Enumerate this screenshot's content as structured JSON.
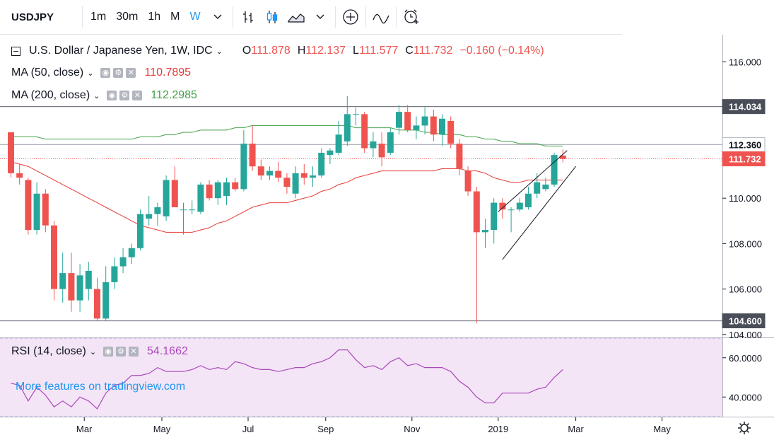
{
  "toolbar": {
    "symbol": "USDJPY",
    "timeframes": [
      "1m",
      "30m",
      "1h",
      "M",
      "W"
    ],
    "active_timeframe": "W",
    "icons": [
      "chevron-down-icon",
      "bar-chart-icon",
      "candle-chart-icon",
      "area-chart-icon",
      "chevron-down-icon",
      "add-indicator-icon",
      "line-compare-icon",
      "alert-clock-icon"
    ]
  },
  "legend": {
    "main": {
      "title": "U.S. Dollar / Japanese Yen, 1W, IDC",
      "open_label": "O",
      "open": "111.878",
      "high_label": "H",
      "high": "112.137",
      "low_label": "L",
      "low": "111.577",
      "close_label": "C",
      "close": "111.732",
      "change": "−0.160 (−0.14%)"
    },
    "ma50": {
      "label": "MA (50, close)",
      "value": "110.7895"
    },
    "ma200": {
      "label": "MA (200, close)",
      "value": "112.2985"
    },
    "rsi": {
      "label": "RSI (14, close)",
      "value": "54.1662"
    }
  },
  "watermark": "More features on tradingview.com",
  "colors": {
    "up": "#26a69a",
    "down": "#ef5350",
    "ma50": "#e53935",
    "ma200": "#43a047",
    "rsi": "#ab47bc",
    "rsi_bg": "#f3e5f5",
    "accent": "#2196f3"
  },
  "price_labels": [
    {
      "text": "114.034",
      "value": 114.034,
      "style": "dark"
    },
    {
      "text": "112.360",
      "value": 112.36,
      "style": "light"
    },
    {
      "text": "111.732",
      "value": 111.732,
      "style": "red"
    },
    {
      "text": "104.600",
      "value": 104.6,
      "style": "dark"
    }
  ],
  "chart_data": {
    "type": "candlestick",
    "price_axis": {
      "ticks": [
        104,
        106,
        108,
        110,
        112,
        114,
        116
      ],
      "tick_labels": [
        "104.000",
        "106.000",
        "108.000",
        "110.000",
        "112.000",
        "114.000",
        "116.000"
      ],
      "range": [
        103.9,
        117.2
      ]
    },
    "rsi_axis": {
      "ticks": [
        40,
        60
      ],
      "tick_labels": [
        "40.0000",
        "60.0000"
      ],
      "range": [
        30,
        70
      ],
      "band": [
        30,
        70
      ]
    },
    "time_axis": {
      "labels": [
        "Mar",
        "May",
        "Jul",
        "Sep",
        "Nov",
        "2019",
        "Mar",
        "May"
      ],
      "label_bar_index": [
        8.5,
        17.5,
        27.5,
        36.5,
        46.5,
        56.5,
        65.5,
        75.5
      ]
    },
    "horizontal_lines": [
      114.034,
      112.36,
      104.6
    ],
    "candles": [
      {
        "o": 112.9,
        "h": 112.9,
        "l": 110.9,
        "c": 111.1
      },
      {
        "o": 111.1,
        "h": 111.5,
        "l": 110.6,
        "c": 110.9
      },
      {
        "o": 110.8,
        "h": 110.9,
        "l": 108.4,
        "c": 108.6
      },
      {
        "o": 108.6,
        "h": 110.7,
        "l": 108.4,
        "c": 110.2
      },
      {
        "o": 110.2,
        "h": 110.4,
        "l": 108.5,
        "c": 108.8
      },
      {
        "o": 108.8,
        "h": 109.0,
        "l": 105.5,
        "c": 106.0
      },
      {
        "o": 106.0,
        "h": 107.6,
        "l": 105.4,
        "c": 106.7
      },
      {
        "o": 106.7,
        "h": 107.6,
        "l": 105.0,
        "c": 105.5
      },
      {
        "o": 105.5,
        "h": 107.1,
        "l": 105.0,
        "c": 106.6
      },
      {
        "o": 106.0,
        "h": 107.2,
        "l": 105.5,
        "c": 106.8
      },
      {
        "o": 106.0,
        "h": 106.5,
        "l": 104.6,
        "c": 104.7
      },
      {
        "o": 104.7,
        "h": 107.0,
        "l": 104.6,
        "c": 106.3
      },
      {
        "o": 106.3,
        "h": 107.4,
        "l": 106.0,
        "c": 107.0
      },
      {
        "o": 107.0,
        "h": 107.8,
        "l": 106.7,
        "c": 107.4
      },
      {
        "o": 107.4,
        "h": 108.0,
        "l": 107.1,
        "c": 107.8
      },
      {
        "o": 107.8,
        "h": 109.5,
        "l": 107.7,
        "c": 109.3
      },
      {
        "o": 109.1,
        "h": 110.1,
        "l": 108.8,
        "c": 109.3
      },
      {
        "o": 109.3,
        "h": 109.8,
        "l": 108.8,
        "c": 109.6
      },
      {
        "o": 109.2,
        "h": 111.0,
        "l": 109.0,
        "c": 110.8
      },
      {
        "o": 110.8,
        "h": 111.4,
        "l": 109.6,
        "c": 109.6
      },
      {
        "o": 109.5,
        "h": 109.8,
        "l": 108.4,
        "c": 109.5
      },
      {
        "o": 109.5,
        "h": 109.9,
        "l": 109.3,
        "c": 109.5
      },
      {
        "o": 109.4,
        "h": 110.7,
        "l": 109.3,
        "c": 110.6
      },
      {
        "o": 110.6,
        "h": 110.8,
        "l": 109.9,
        "c": 110.0
      },
      {
        "o": 110.0,
        "h": 110.8,
        "l": 109.7,
        "c": 110.7
      },
      {
        "o": 110.1,
        "h": 110.9,
        "l": 109.7,
        "c": 110.7
      },
      {
        "o": 110.7,
        "h": 110.9,
        "l": 110.3,
        "c": 110.4
      },
      {
        "o": 110.4,
        "h": 113.0,
        "l": 110.3,
        "c": 112.4
      },
      {
        "o": 112.4,
        "h": 113.2,
        "l": 111.2,
        "c": 111.4
      },
      {
        "o": 111.4,
        "h": 111.7,
        "l": 110.8,
        "c": 111.0
      },
      {
        "o": 111.0,
        "h": 111.4,
        "l": 110.8,
        "c": 111.2
      },
      {
        "o": 111.2,
        "h": 111.6,
        "l": 110.7,
        "c": 110.9
      },
      {
        "o": 110.9,
        "h": 111.1,
        "l": 110.2,
        "c": 110.5
      },
      {
        "o": 110.2,
        "h": 111.4,
        "l": 110.0,
        "c": 111.1
      },
      {
        "o": 111.1,
        "h": 111.5,
        "l": 110.6,
        "c": 110.9
      },
      {
        "o": 110.9,
        "h": 111.4,
        "l": 110.5,
        "c": 111.0
      },
      {
        "o": 111.0,
        "h": 112.2,
        "l": 110.9,
        "c": 112.0
      },
      {
        "o": 111.9,
        "h": 112.2,
        "l": 111.5,
        "c": 112.1
      },
      {
        "o": 112.0,
        "h": 113.4,
        "l": 111.9,
        "c": 112.8
      },
      {
        "o": 112.5,
        "h": 114.5,
        "l": 112.3,
        "c": 113.7
      },
      {
        "o": 113.7,
        "h": 114.0,
        "l": 113.2,
        "c": 113.7
      },
      {
        "o": 113.7,
        "h": 113.8,
        "l": 112.0,
        "c": 112.2
      },
      {
        "o": 112.2,
        "h": 112.9,
        "l": 111.8,
        "c": 112.5
      },
      {
        "o": 112.4,
        "h": 112.9,
        "l": 111.4,
        "c": 111.8
      },
      {
        "o": 112.0,
        "h": 113.1,
        "l": 111.9,
        "c": 112.9
      },
      {
        "o": 113.1,
        "h": 114.1,
        "l": 112.8,
        "c": 113.8
      },
      {
        "o": 113.8,
        "h": 114.1,
        "l": 112.9,
        "c": 113.0
      },
      {
        "o": 113.0,
        "h": 113.6,
        "l": 112.6,
        "c": 113.2
      },
      {
        "o": 113.2,
        "h": 114.0,
        "l": 112.8,
        "c": 113.6
      },
      {
        "o": 113.6,
        "h": 113.9,
        "l": 112.5,
        "c": 112.8
      },
      {
        "o": 112.8,
        "h": 113.7,
        "l": 112.3,
        "c": 113.5
      },
      {
        "o": 113.4,
        "h": 113.6,
        "l": 112.2,
        "c": 112.4
      },
      {
        "o": 112.4,
        "h": 112.6,
        "l": 111.0,
        "c": 111.3
      },
      {
        "o": 111.2,
        "h": 111.4,
        "l": 110.1,
        "c": 110.3
      },
      {
        "o": 110.3,
        "h": 110.5,
        "l": 104.5,
        "c": 108.5
      },
      {
        "o": 108.5,
        "h": 109.1,
        "l": 107.8,
        "c": 108.6
      },
      {
        "o": 108.6,
        "h": 110.0,
        "l": 108.0,
        "c": 109.8
      },
      {
        "o": 109.8,
        "h": 110.0,
        "l": 109.1,
        "c": 109.5
      },
      {
        "o": 109.5,
        "h": 109.6,
        "l": 108.5,
        "c": 109.5
      },
      {
        "o": 109.5,
        "h": 110.0,
        "l": 109.4,
        "c": 109.8
      },
      {
        "o": 109.6,
        "h": 110.5,
        "l": 109.5,
        "c": 110.2
      },
      {
        "o": 110.2,
        "h": 111.1,
        "l": 110.0,
        "c": 110.7
      },
      {
        "o": 110.4,
        "h": 110.9,
        "l": 110.3,
        "c": 110.6
      },
      {
        "o": 110.6,
        "h": 112.0,
        "l": 110.5,
        "c": 111.9
      },
      {
        "o": 111.878,
        "h": 112.137,
        "l": 111.577,
        "c": 111.732
      }
    ],
    "ma50": [
      111.6,
      111.5,
      111.4,
      111.2,
      111.0,
      110.8,
      110.6,
      110.4,
      110.2,
      110.0,
      109.8,
      109.6,
      109.4,
      109.2,
      109.0,
      108.8,
      108.7,
      108.6,
      108.5,
      108.5,
      108.5,
      108.5,
      108.6,
      108.7,
      108.9,
      109.0,
      109.2,
      109.4,
      109.6,
      109.7,
      109.8,
      109.8,
      109.8,
      109.9,
      110.0,
      110.1,
      110.3,
      110.4,
      110.6,
      110.7,
      110.9,
      111.0,
      111.1,
      111.2,
      111.2,
      111.2,
      111.2,
      111.2,
      111.2,
      111.2,
      111.3,
      111.3,
      111.3,
      111.2,
      111.2,
      111.1,
      110.9,
      110.8,
      110.7,
      110.7,
      110.8,
      110.8,
      110.8,
      110.8,
      110.8
    ],
    "ma200": [
      112.7,
      112.7,
      112.7,
      112.7,
      112.6,
      112.6,
      112.6,
      112.6,
      112.6,
      112.6,
      112.6,
      112.6,
      112.6,
      112.6,
      112.6,
      112.7,
      112.7,
      112.7,
      112.8,
      112.8,
      112.9,
      112.9,
      113.0,
      113.0,
      113.0,
      113.0,
      113.1,
      113.1,
      113.2,
      113.2,
      113.2,
      113.2,
      113.2,
      113.2,
      113.2,
      113.2,
      113.2,
      113.2,
      113.2,
      113.2,
      113.1,
      113.1,
      113.1,
      113.1,
      113.1,
      113.0,
      113.0,
      113.0,
      112.9,
      112.9,
      112.8,
      112.8,
      112.8,
      112.7,
      112.7,
      112.6,
      112.6,
      112.5,
      112.5,
      112.4,
      112.4,
      112.4,
      112.3,
      112.3,
      112.3
    ],
    "rsi": [
      47,
      46,
      38,
      45,
      41,
      35,
      38,
      35,
      40,
      38,
      34,
      42,
      46,
      47,
      51,
      51,
      52,
      55,
      53,
      53,
      53,
      54,
      56,
      54,
      55,
      54,
      58,
      57,
      55,
      54,
      54,
      53,
      54,
      55,
      55,
      57,
      58,
      60,
      64,
      64,
      59,
      55,
      56,
      54,
      58,
      60,
      56,
      57,
      55,
      55,
      55,
      53,
      48,
      45,
      40,
      37,
      37,
      42,
      42,
      42,
      42,
      44,
      45,
      50,
      54
    ],
    "channel": {
      "upper": {
        "from": {
          "bar": 56.5,
          "price": 109.4
        },
        "to": {
          "bar": 64.5,
          "price": 112.1
        }
      },
      "lower": {
        "from": {
          "bar": 57,
          "price": 107.3
        },
        "to": {
          "bar": 65.5,
          "price": 111.4
        }
      }
    }
  }
}
